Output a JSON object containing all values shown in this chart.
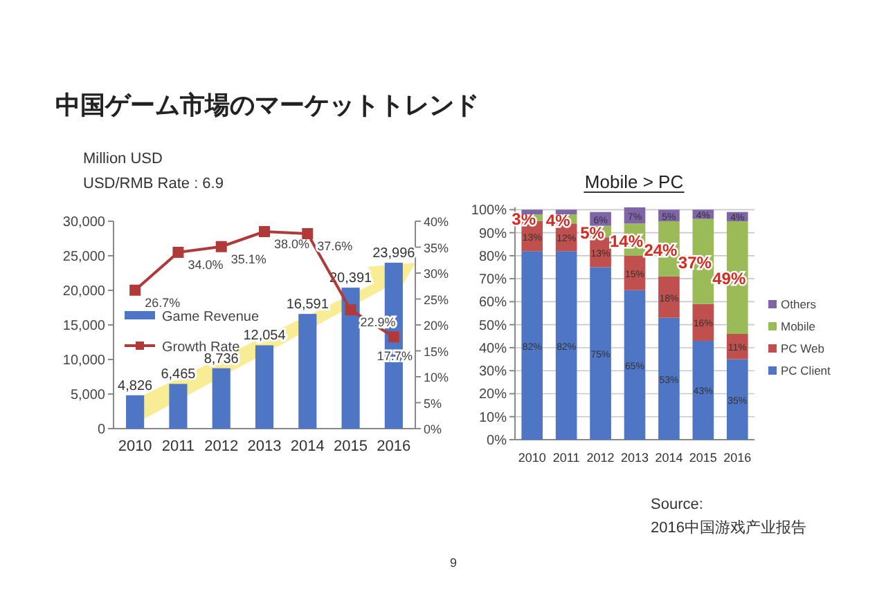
{
  "chart_data": [
    {
      "type": "bar",
      "title": "中国ゲーム市場のマーケットトレンド",
      "annotations": [
        "Million USD",
        "USD/RMB Rate : 6.9"
      ],
      "categories": [
        "2010",
        "2011",
        "2012",
        "2013",
        "2014",
        "2015",
        "2016"
      ],
      "series": [
        {
          "name": "Game Revenue",
          "color": "#4f76c4",
          "values": [
            4826,
            6465,
            8736,
            12054,
            16591,
            20391,
            23996
          ],
          "value_labels": [
            "4,826",
            "6,465",
            "8,736",
            "12,054",
            "16,591",
            "20,391",
            "23,996"
          ]
        },
        {
          "name": "Growth Rate",
          "type": "line",
          "axis": "y2",
          "color": "#b03a3a",
          "values": [
            26.7,
            34.0,
            35.1,
            38.0,
            37.6,
            22.9,
            17.7
          ],
          "value_labels": [
            "26.7%",
            "34.0%",
            "35.1%",
            "38.0%",
            "37.6%",
            "22.9%",
            "17.7%"
          ]
        }
      ],
      "ylim": [
        0,
        30000
      ],
      "yticks": [
        0,
        {
          "value": 5000,
          "label": "5,000"
        },
        {
          "value": 10000,
          "label": "10,000"
        },
        {
          "value": 15000,
          "label": "15,000"
        },
        {
          "value": 20000,
          "label": "20,000"
        },
        {
          "value": 25000,
          "label": "25,000"
        },
        {
          "value": 30000,
          "label": "30,000"
        }
      ],
      "y2lim": [
        0,
        40
      ],
      "y2ticks": [
        {
          "value": 0,
          "label": "0%"
        },
        {
          "value": 5,
          "label": "5%"
        },
        {
          "value": 10,
          "label": "10%"
        },
        {
          "value": 15,
          "label": "15%"
        },
        {
          "value": 20,
          "label": "20%"
        },
        {
          "value": 25,
          "label": "25%"
        },
        {
          "value": 30,
          "label": "30%"
        },
        {
          "value": 35,
          "label": "35%"
        },
        {
          "value": 40,
          "label": "40%"
        }
      ],
      "legend": "left",
      "marker": "square",
      "grid": false
    },
    {
      "type": "bar",
      "stacked": true,
      "title": "Mobile > PC",
      "annotations": [
        "Source:",
        "2016中国游戏产业报告",
        "9"
      ],
      "categories": [
        "2010",
        "2011",
        "2012",
        "2013",
        "2014",
        "2015",
        "2016"
      ],
      "series": [
        {
          "name": "PC Client",
          "color": "#4f76c4",
          "values": [
            82,
            82,
            75,
            65,
            53,
            43,
            35
          ],
          "value_labels": [
            "82%",
            "82%",
            "75%",
            "65%",
            "53%",
            "43%",
            "35%"
          ]
        },
        {
          "name": "PC Web",
          "color": "#c0504d",
          "values": [
            13,
            12,
            13,
            15,
            18,
            16,
            11
          ],
          "value_labels": [
            "13%",
            "12%",
            "13%",
            "15%",
            "18%",
            "16%",
            "11%"
          ]
        },
        {
          "name": "Mobile",
          "color": "#9bbb59",
          "values": [
            3,
            4,
            5,
            14,
            24,
            37,
            49
          ],
          "value_labels": [
            "3%",
            "4%",
            "5%",
            "14%",
            "24%",
            "37%",
            "49%"
          ]
        },
        {
          "name": "Others",
          "color": "#7f64a8",
          "values": [
            2,
            2,
            6,
            7,
            5,
            4,
            4
          ],
          "value_labels": [
            null,
            null,
            "6%",
            "7%",
            "5%",
            "4%",
            "4%"
          ]
        }
      ],
      "ylim": [
        0,
        101
      ],
      "yticks": [
        {
          "value": 0,
          "label": "0%"
        },
        {
          "value": 10,
          "label": "10%"
        },
        {
          "value": 20,
          "label": "20%"
        },
        {
          "value": 30,
          "label": "30%"
        },
        {
          "value": 40,
          "label": "40%"
        },
        {
          "value": 50,
          "label": "50%"
        },
        {
          "value": 60,
          "label": "60%"
        },
        {
          "value": 70,
          "label": "70%"
        },
        {
          "value": 80,
          "label": "80%"
        },
        {
          "value": 90,
          "label": "90%"
        },
        {
          "value": 100,
          "label": "100%"
        }
      ],
      "legend": "right",
      "grid": "y"
    }
  ]
}
